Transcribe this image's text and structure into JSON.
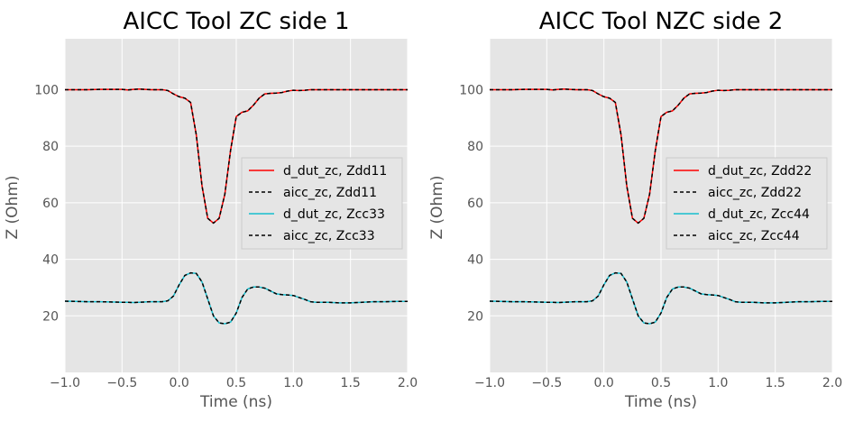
{
  "chart_data": [
    {
      "type": "line",
      "title": "AICC Tool ZC side 1",
      "xlabel": "Time (ns)",
      "ylabel": "Z (Ohm)",
      "xlim": [
        -1.0,
        2.0
      ],
      "ylim": [
        0,
        118
      ],
      "xticks": [
        "−1.0",
        "−0.5",
        "0.0",
        "0.5",
        "1.0",
        "1.5",
        "2.0"
      ],
      "yticks": [
        "20",
        "40",
        "60",
        "80",
        "100"
      ],
      "grid": true,
      "legend_position": "center-right",
      "x": [
        -1.0,
        -0.9,
        -0.8,
        -0.7,
        -0.6,
        -0.5,
        -0.45,
        -0.4,
        -0.35,
        -0.3,
        -0.25,
        -0.2,
        -0.15,
        -0.1,
        -0.05,
        0.0,
        0.05,
        0.1,
        0.15,
        0.2,
        0.25,
        0.3,
        0.35,
        0.4,
        0.45,
        0.5,
        0.55,
        0.6,
        0.65,
        0.7,
        0.75,
        0.8,
        0.85,
        0.9,
        0.95,
        1.0,
        1.05,
        1.1,
        1.15,
        1.2,
        1.3,
        1.4,
        1.5,
        1.6,
        1.7,
        1.8,
        1.9,
        2.0
      ],
      "series": [
        {
          "name": "d_dut_zc, Zdd11",
          "color": "#ff0000",
          "style": "solid",
          "values": [
            100.0,
            100.0,
            100.0,
            100.1,
            100.1,
            100.1,
            99.9,
            100.1,
            100.2,
            100.1,
            100.0,
            100.0,
            100.0,
            99.7,
            98.5,
            97.5,
            97.0,
            95.5,
            84.0,
            66.0,
            54.5,
            52.8,
            54.5,
            63.0,
            78.5,
            90.5,
            92.0,
            92.5,
            94.5,
            97.0,
            98.5,
            98.7,
            98.8,
            99.0,
            99.5,
            99.8,
            99.7,
            99.8,
            100.0,
            100.0,
            100.0,
            100.0,
            100.0,
            100.0,
            100.0,
            100.0,
            100.0,
            100.0
          ]
        },
        {
          "name": "aicc_zc, Zdd11",
          "color": "#000000",
          "style": "dashed",
          "values": [
            100.0,
            100.0,
            100.0,
            100.1,
            100.1,
            100.1,
            99.9,
            100.1,
            100.2,
            100.1,
            100.0,
            100.0,
            100.0,
            99.7,
            98.5,
            97.5,
            97.0,
            95.5,
            84.0,
            66.0,
            54.5,
            52.8,
            54.5,
            63.0,
            78.5,
            90.5,
            92.0,
            92.5,
            94.5,
            97.0,
            98.5,
            98.7,
            98.8,
            99.0,
            99.5,
            99.8,
            99.7,
            99.8,
            100.0,
            100.0,
            100.0,
            100.0,
            100.0,
            100.0,
            100.0,
            100.0,
            100.0,
            100.0
          ]
        },
        {
          "name": "d_dut_zc, Zcc33",
          "color": "#17becf",
          "style": "solid",
          "values": [
            25.2,
            25.1,
            25.0,
            25.0,
            24.9,
            24.8,
            24.8,
            24.7,
            24.8,
            24.9,
            25.0,
            25.0,
            25.0,
            25.3,
            27.0,
            31.0,
            34.3,
            35.2,
            35.0,
            32.0,
            26.0,
            20.0,
            17.5,
            17.2,
            17.8,
            21.0,
            26.5,
            29.5,
            30.2,
            30.2,
            29.8,
            28.8,
            27.8,
            27.5,
            27.4,
            27.2,
            26.5,
            25.8,
            25.0,
            24.8,
            24.8,
            24.6,
            24.6,
            24.8,
            25.0,
            25.0,
            25.1,
            25.1
          ]
        },
        {
          "name": "aicc_zc, Zcc33",
          "color": "#000000",
          "style": "dashed",
          "values": [
            25.2,
            25.1,
            25.0,
            25.0,
            24.9,
            24.8,
            24.8,
            24.7,
            24.8,
            24.9,
            25.0,
            25.0,
            25.0,
            25.3,
            27.0,
            31.0,
            34.3,
            35.2,
            35.0,
            32.0,
            26.0,
            20.0,
            17.5,
            17.2,
            17.8,
            21.0,
            26.5,
            29.5,
            30.2,
            30.2,
            29.8,
            28.8,
            27.8,
            27.5,
            27.4,
            27.2,
            26.5,
            25.8,
            25.0,
            24.8,
            24.8,
            24.6,
            24.6,
            24.8,
            25.0,
            25.0,
            25.1,
            25.1
          ]
        }
      ]
    },
    {
      "type": "line",
      "title": "AICC Tool NZC side 2",
      "xlabel": "Time (ns)",
      "ylabel": "Z (Ohm)",
      "xlim": [
        -1.0,
        2.0
      ],
      "ylim": [
        0,
        118
      ],
      "xticks": [
        "−1.0",
        "−0.5",
        "0.0",
        "0.5",
        "1.0",
        "1.5",
        "2.0"
      ],
      "yticks": [
        "20",
        "40",
        "60",
        "80",
        "100"
      ],
      "grid": true,
      "legend_position": "center-right",
      "x": [
        -1.0,
        -0.9,
        -0.8,
        -0.7,
        -0.6,
        -0.5,
        -0.45,
        -0.4,
        -0.35,
        -0.3,
        -0.25,
        -0.2,
        -0.15,
        -0.1,
        -0.05,
        0.0,
        0.05,
        0.1,
        0.15,
        0.2,
        0.25,
        0.3,
        0.35,
        0.4,
        0.45,
        0.5,
        0.55,
        0.6,
        0.65,
        0.7,
        0.75,
        0.8,
        0.85,
        0.9,
        0.95,
        1.0,
        1.05,
        1.1,
        1.15,
        1.2,
        1.3,
        1.4,
        1.5,
        1.6,
        1.7,
        1.8,
        1.9,
        2.0
      ],
      "series": [
        {
          "name": "d_dut_zc, Zdd22",
          "color": "#ff0000",
          "style": "solid",
          "values": [
            100.0,
            100.0,
            100.0,
            100.1,
            100.1,
            100.1,
            99.9,
            100.1,
            100.2,
            100.1,
            100.0,
            100.0,
            100.0,
            99.7,
            98.5,
            97.5,
            97.0,
            95.5,
            84.0,
            66.0,
            54.5,
            52.8,
            54.5,
            63.0,
            78.5,
            90.5,
            92.0,
            92.5,
            94.5,
            97.0,
            98.5,
            98.7,
            98.8,
            99.0,
            99.5,
            99.8,
            99.7,
            99.8,
            100.0,
            100.0,
            100.0,
            100.0,
            100.0,
            100.0,
            100.0,
            100.0,
            100.0,
            100.0
          ]
        },
        {
          "name": "aicc_zc, Zdd22",
          "color": "#000000",
          "style": "dashed",
          "values": [
            100.0,
            100.0,
            100.0,
            100.1,
            100.1,
            100.1,
            99.9,
            100.1,
            100.2,
            100.1,
            100.0,
            100.0,
            100.0,
            99.7,
            98.5,
            97.5,
            97.0,
            95.5,
            84.0,
            66.0,
            54.5,
            52.8,
            54.5,
            63.0,
            78.5,
            90.5,
            92.0,
            92.5,
            94.5,
            97.0,
            98.5,
            98.7,
            98.8,
            99.0,
            99.5,
            99.8,
            99.7,
            99.8,
            100.0,
            100.0,
            100.0,
            100.0,
            100.0,
            100.0,
            100.0,
            100.0,
            100.0,
            100.0
          ]
        },
        {
          "name": "d_dut_zc, Zcc44",
          "color": "#17becf",
          "style": "solid",
          "values": [
            25.2,
            25.1,
            25.0,
            25.0,
            24.9,
            24.8,
            24.8,
            24.7,
            24.8,
            24.9,
            25.0,
            25.0,
            25.0,
            25.3,
            27.0,
            31.0,
            34.3,
            35.2,
            35.0,
            32.0,
            26.0,
            20.0,
            17.5,
            17.2,
            17.8,
            21.0,
            26.5,
            29.5,
            30.2,
            30.2,
            29.8,
            28.8,
            27.8,
            27.5,
            27.4,
            27.2,
            26.5,
            25.8,
            25.0,
            24.8,
            24.8,
            24.6,
            24.6,
            24.8,
            25.0,
            25.0,
            25.1,
            25.1
          ]
        },
        {
          "name": "aicc_zc, Zcc44",
          "color": "#000000",
          "style": "dashed",
          "values": [
            25.2,
            25.1,
            25.0,
            25.0,
            24.9,
            24.8,
            24.8,
            24.7,
            24.8,
            24.9,
            25.0,
            25.0,
            25.0,
            25.3,
            27.0,
            31.0,
            34.3,
            35.2,
            35.0,
            32.0,
            26.0,
            20.0,
            17.5,
            17.2,
            17.8,
            21.0,
            26.5,
            29.5,
            30.2,
            30.2,
            29.8,
            28.8,
            27.8,
            27.5,
            27.4,
            27.2,
            26.5,
            25.8,
            25.0,
            24.8,
            24.8,
            24.6,
            24.6,
            24.8,
            25.0,
            25.0,
            25.1,
            25.1
          ]
        }
      ]
    }
  ],
  "style": {
    "plot_background": "#e5e5e5",
    "grid_color": "#ffffff",
    "tick_color": "#555555"
  }
}
